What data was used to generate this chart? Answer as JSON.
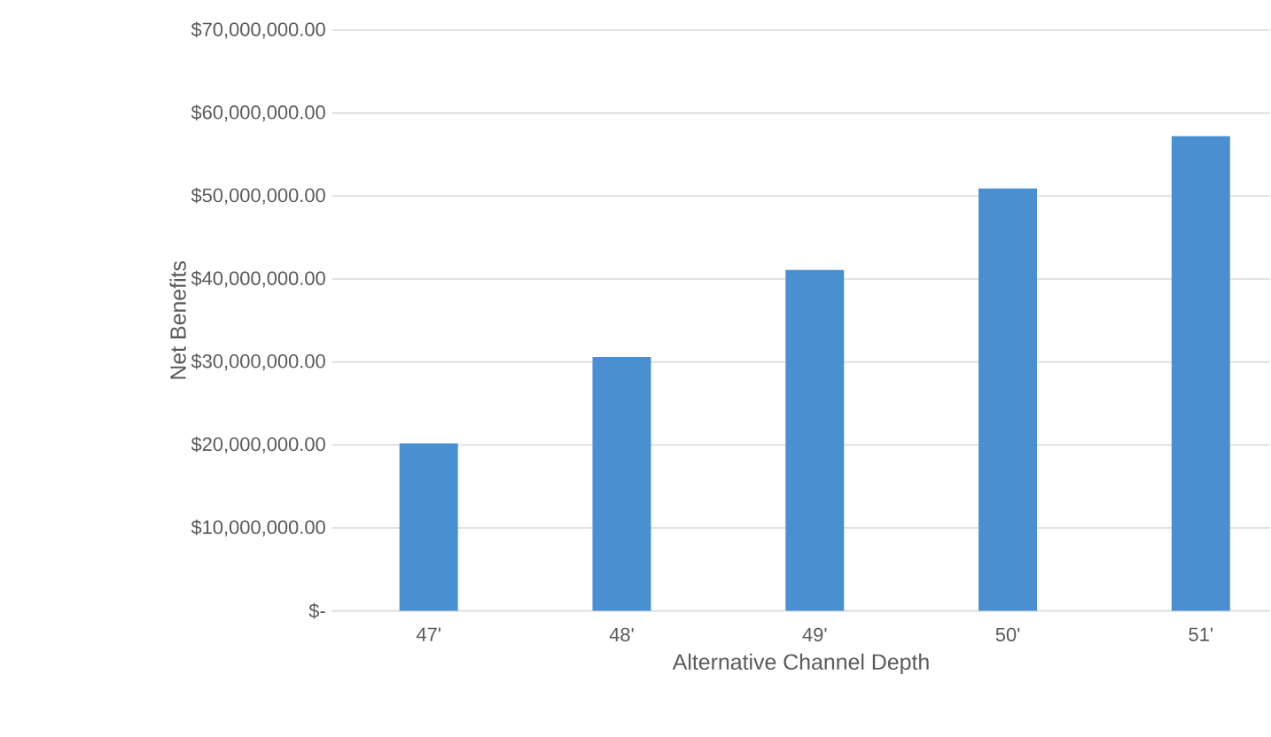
{
  "chart_data": {
    "type": "bar",
    "xlabel": "Alternative Channel Depth",
    "ylabel": "Net Benefits",
    "categories": [
      "47'",
      "48'",
      "49'",
      "50'",
      "51'"
    ],
    "values": [
      20200000,
      30600000,
      41100000,
      50900000,
      57200000
    ],
    "color": "#4a8fd0",
    "ylim": [
      0,
      70000000
    ],
    "yticks": [
      {
        "value": 0,
        "label": "$-"
      },
      {
        "value": 10000000,
        "label": "$10,000,000.00"
      },
      {
        "value": 20000000,
        "label": "$20,000,000.00"
      },
      {
        "value": 30000000,
        "label": "$30,000,000.00"
      },
      {
        "value": 40000000,
        "label": "$40,000,000.00"
      },
      {
        "value": 50000000,
        "label": "$50,000,000.00"
      },
      {
        "value": 60000000,
        "label": "$60,000,000.00"
      },
      {
        "value": 70000000,
        "label": "$70,000,000.00"
      }
    ],
    "grid": "y"
  }
}
